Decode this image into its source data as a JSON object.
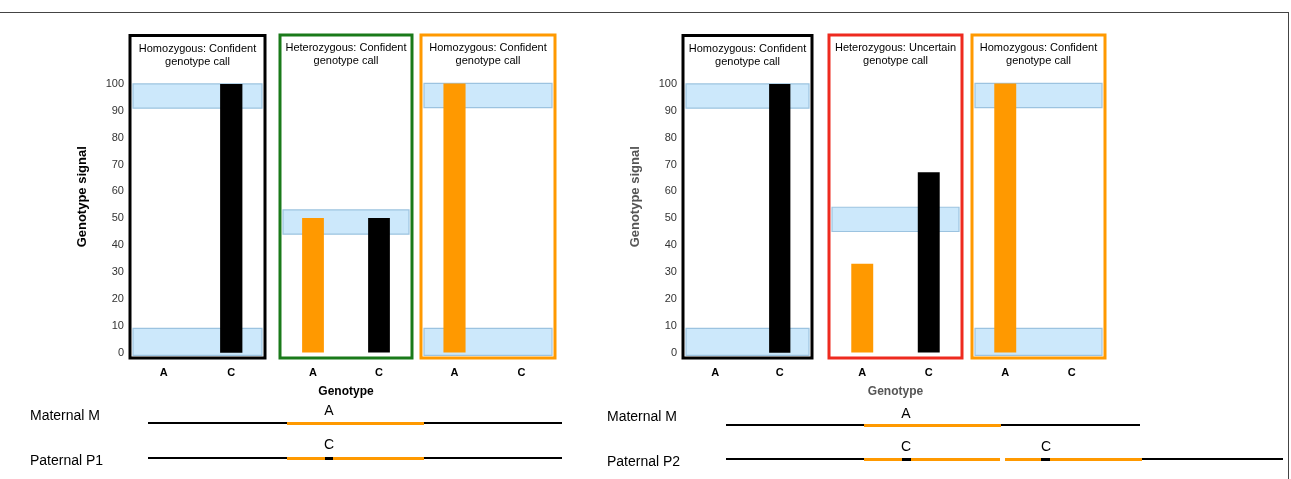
{
  "chart_data": [
    {
      "type": "bar",
      "title": "Homozygous: Confident genotype call",
      "ylabel": "Genotype signal",
      "categories": [
        "A",
        "C"
      ],
      "values": [
        0,
        100
      ],
      "colors": [
        "#ff9900",
        "#000000"
      ],
      "ylim": [
        -2,
        118
      ],
      "yticks": [
        0,
        10,
        20,
        30,
        40,
        50,
        60,
        70,
        80,
        90,
        100
      ],
      "bands": [
        {
          "axis": "y",
          "from": 91,
          "to": 100,
          "color": "#cce8fb"
        },
        {
          "axis": "y",
          "from": -1,
          "to": 9,
          "color": "#cce8fb"
        }
      ]
    },
    {
      "type": "bar",
      "title": "Heterozygous: Confident genotype call",
      "xlabel": "Genotype",
      "categories": [
        "A",
        "C"
      ],
      "values": [
        50,
        50
      ],
      "colors": [
        "#ff9900",
        "#000000"
      ],
      "ylim": [
        -2,
        118
      ],
      "yticks": [
        0,
        10,
        20,
        30,
        40,
        50,
        60,
        70,
        80,
        90,
        100
      ],
      "tick_labels": "x",
      "bands": [
        {
          "axis": "y",
          "from": 44,
          "to": 53,
          "color": "#cce8fb"
        }
      ]
    },
    {
      "type": "bar",
      "title": "Homozygous: Confident genotype call",
      "categories": [
        "A",
        "C"
      ],
      "values": [
        100,
        0
      ],
      "colors": [
        "#ff9900",
        "#000000"
      ],
      "ylim": [
        -2,
        118
      ],
      "yticks": [
        0,
        10,
        20,
        30,
        40,
        50,
        60,
        70,
        80,
        90,
        100
      ],
      "tick_labels": "x",
      "bands": [
        {
          "axis": "y",
          "from": 91,
          "to": 100,
          "color": "#cce8fb"
        },
        {
          "axis": "y",
          "from": -1,
          "to": 9,
          "color": "#cce8fb"
        }
      ]
    },
    {
      "type": "bar",
      "title": "Homozygous: Confident genotype call",
      "ylabel": "Genotype signal",
      "categories": [
        "A",
        "C"
      ],
      "values": [
        0,
        100
      ],
      "colors": [
        "#ff9900",
        "#000000"
      ],
      "ylim": [
        -2,
        118
      ],
      "yticks": [
        0,
        10,
        20,
        30,
        40,
        50,
        60,
        70,
        80,
        90,
        100
      ],
      "bands": [
        {
          "axis": "y",
          "from": 91,
          "to": 100,
          "color": "#cce8fb"
        },
        {
          "axis": "y",
          "from": -1,
          "to": 9,
          "color": "#cce8fb"
        }
      ]
    },
    {
      "type": "bar",
      "title": "Heterozygous: Uncertain genotype call",
      "xlabel": "Genotype",
      "categories": [
        "A",
        "C"
      ],
      "values": [
        33,
        67
      ],
      "colors": [
        "#ff9900",
        "#000000"
      ],
      "ylim": [
        -2,
        118
      ],
      "yticks": [
        0,
        10,
        20,
        30,
        40,
        50,
        60,
        70,
        80,
        90,
        100
      ],
      "tick_labels": "x",
      "bands": [
        {
          "axis": "y",
          "from": 45,
          "to": 54,
          "color": "#cce8fb"
        }
      ]
    },
    {
      "type": "bar",
      "title": "Homozygous: Confident genotype call",
      "categories": [
        "A",
        "C"
      ],
      "values": [
        100,
        0
      ],
      "colors": [
        "#ff9900",
        "#000000"
      ],
      "ylim": [
        -2,
        118
      ],
      "yticks": [
        0,
        10,
        20,
        30,
        40,
        50,
        60,
        70,
        80,
        90,
        100
      ],
      "tick_labels": "x",
      "bands": [
        {
          "axis": "y",
          "from": 91,
          "to": 100,
          "color": "#cce8fb"
        },
        {
          "axis": "y",
          "from": -1,
          "to": 9,
          "color": "#cce8fb"
        }
      ]
    },
    {
      "type": "other",
      "annotations": [
        "Maternal M",
        "A",
        "Paternal P1",
        "C"
      ]
    },
    {
      "type": "other",
      "annotations": [
        "Maternal M",
        "A",
        "Paternal P2",
        "C",
        "C"
      ]
    }
  ]
}
